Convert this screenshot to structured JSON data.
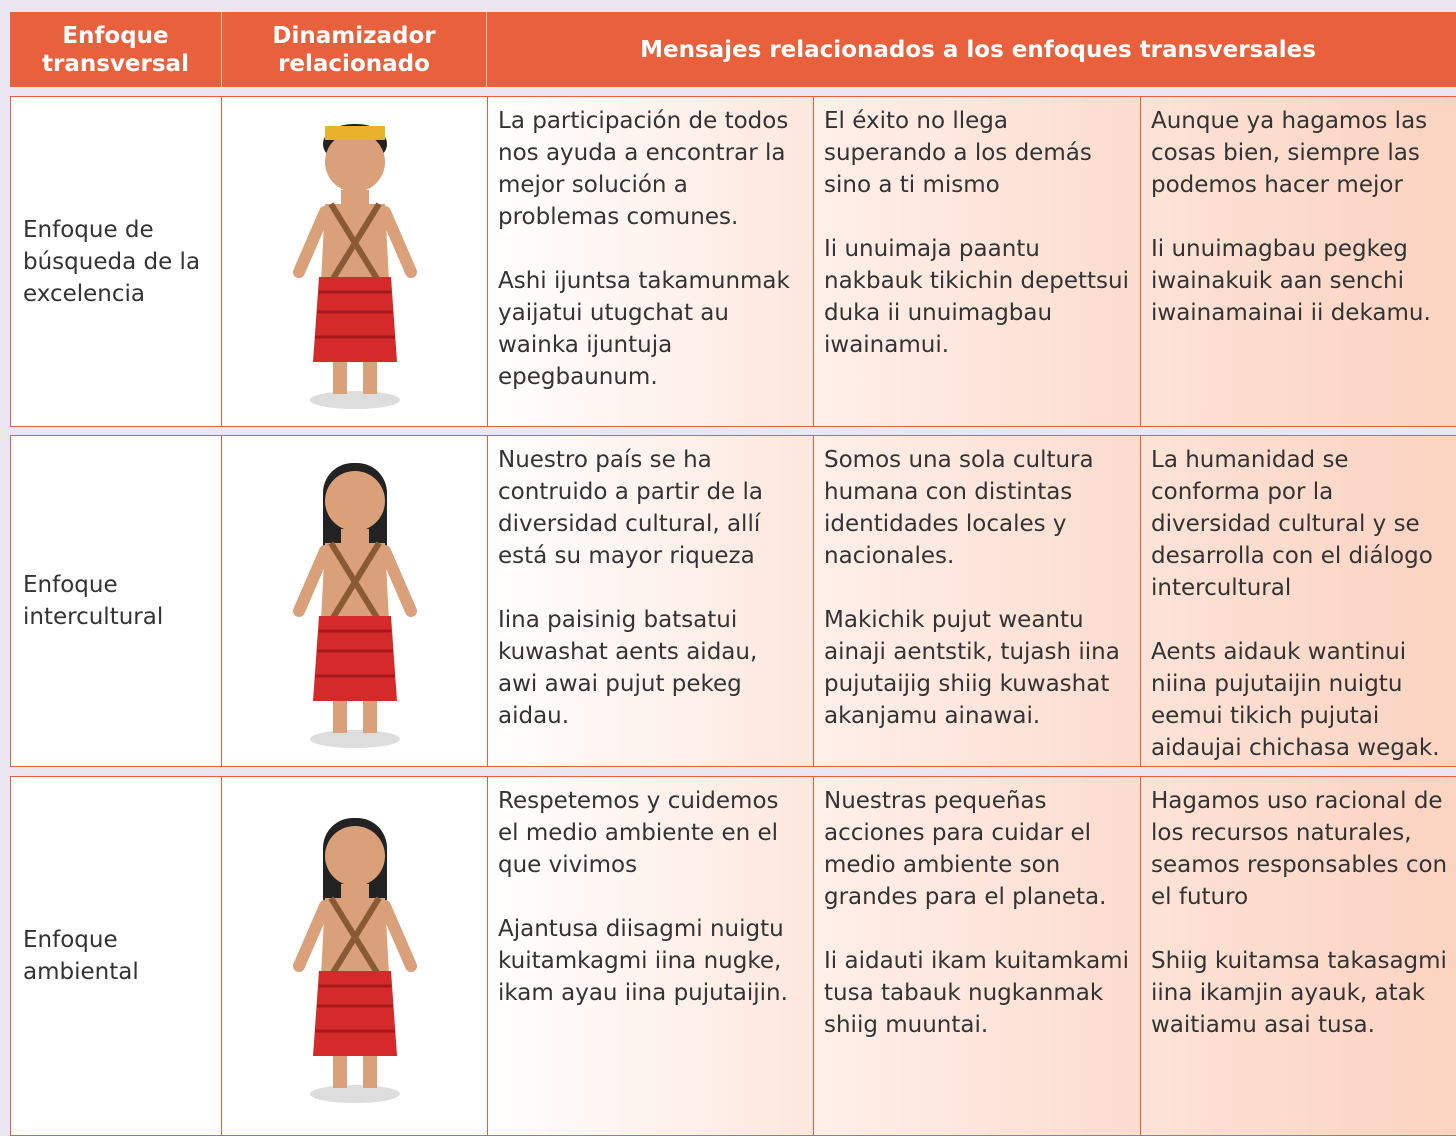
{
  "table": {
    "headers": [
      "Enfoque transversal",
      "Dinamizador relacionado",
      "Mensajes relacionados a los enfoques transversales"
    ],
    "rows": [
      {
        "approach": "Enfoque de búsqueda de la excelencia",
        "messages": [
          [
            "La participación de todos nos ayuda a encontrar la mejor solución a problemas comunes.",
            "Ashi ijuntsa takamunmak yaijatui utugchat au wainka ijuntuja epegbaunum."
          ],
          [
            "El éxito no llega superando a los demás sino a ti mismo",
            "Ii unuimaja paantu nakbauk tikichin depettsui duka ii unuimagbau iwainamui."
          ],
          [
            "Aunque ya hagamos las cosas bien, siempre las podemos hacer mejor",
            "Ii unuimagbau pegkeg iwainakuik aan senchi iwainamainai ii dekamu."
          ]
        ]
      },
      {
        "approach": "Enfoque intercultural",
        "messages": [
          [
            "Nuestro país se ha contruido a partir de la diversidad cultural, allí está su mayor riqueza",
            "Iina paisinig batsatui kuwashat aents aidau, awi awai pujut pekeg aidau."
          ],
          [
            "Somos una sola cultura humana con distintas identidades locales y nacionales.",
            "Makichik pujut weantu ainaji aentstik, tujash iina pujutaijig shiig kuwashat akanjamu ainawai."
          ],
          [
            "La humanidad se conforma por la diversidad cultural y se desarrolla con el diálogo intercultural",
            "Aents aidauk wantinui niina pujutaijin  nuigtu eemui tikich pujutai aidaujai chichasa wegak."
          ]
        ]
      },
      {
        "approach": "Enfoque ambiental",
        "messages": [
          [
            "Respetemos y cuidemos el medio ambiente en el que vivimos",
            "Ajantusa diisagmi nuigtu kuitamkagmi iina nugke, ikam ayau iina pujutaijin."
          ],
          [
            "Nuestras pequeñas acciones para cuidar el medio ambiente son grandes para el planeta.",
            "Ii aidauti ikam kuitamkami tusa tabauk  nugkanmak shiig muuntai."
          ],
          [
            "Hagamos uso racional de los recursos naturales, seamos responsables con el futuro",
            "Shiig kuitamsa takasagmi iina ikamjin ayauk, atak waitiamu asai tusa."
          ]
        ]
      }
    ]
  }
}
